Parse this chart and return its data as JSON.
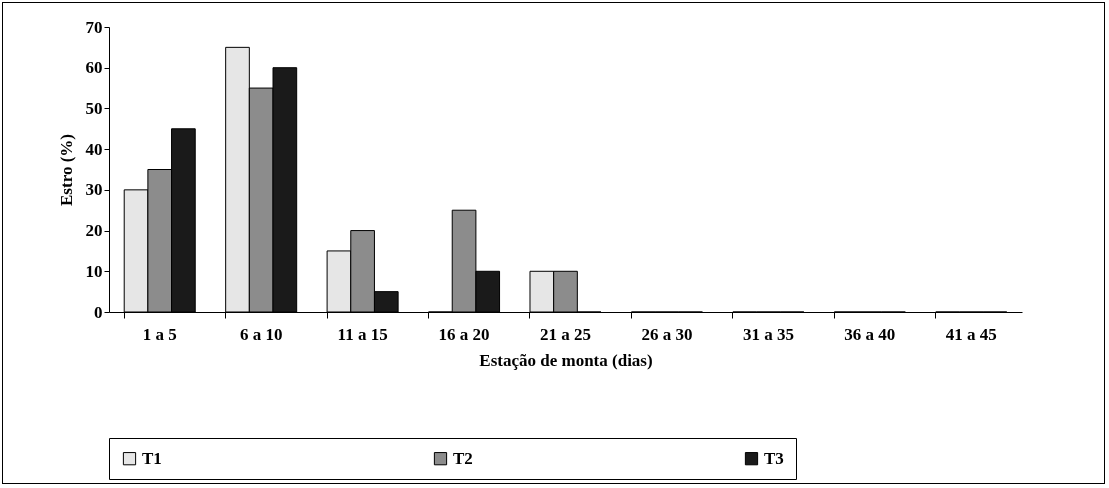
{
  "chart_data": {
    "type": "bar",
    "xlabel": "Estação de monta (dias)",
    "ylabel": "Estro (%)",
    "categories": [
      "1 a 5",
      "6 a 10",
      "11 a 15",
      "16 a 20",
      "21 a 25",
      "26 a 30",
      "31 a 35",
      "36 a 40",
      "41 a 45"
    ],
    "series": [
      {
        "name": "T1",
        "color": "#e6e6e6",
        "values": [
          30,
          65,
          15,
          0,
          10,
          0,
          0,
          0,
          0
        ]
      },
      {
        "name": "T2",
        "color": "#8c8c8c",
        "values": [
          35,
          55,
          20,
          25,
          10,
          0,
          0,
          0,
          0
        ]
      },
      {
        "name": "T3",
        "color": "#1a1a1a",
        "values": [
          45,
          60,
          5,
          10,
          0,
          0,
          0,
          0,
          0
        ]
      }
    ],
    "ylim": [
      0,
      70
    ],
    "yticks": [
      0,
      10,
      20,
      30,
      40,
      50,
      60,
      70
    ],
    "grid": false,
    "legend": "bottom"
  }
}
